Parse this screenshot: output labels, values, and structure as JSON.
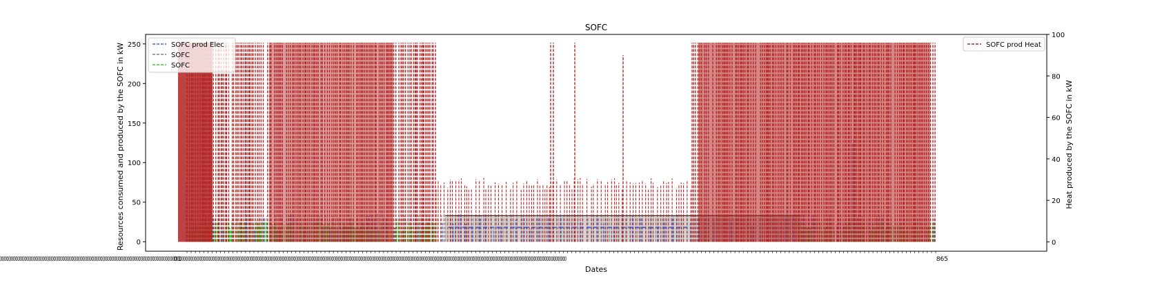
{
  "chart_data": {
    "type": "line",
    "title": "SOFC",
    "xlabel": "Dates",
    "ylabel_left": "Resources consumed and produced by the SOFC in kW",
    "ylabel_right": "Heat produced by the SOFC in kW",
    "ylim_left": [
      -12,
      262
    ],
    "ylim_right": [
      -4.5,
      100
    ],
    "yticks_left": [
      0,
      50,
      100,
      150,
      200,
      250
    ],
    "yticks_right": [
      0,
      20,
      40,
      60,
      80,
      100
    ],
    "x_tick_labels_note": "dense overlapping date ticks (illegible)",
    "x_tick_label_edges": [
      "01",
      "865"
    ],
    "grid": false,
    "legend_left": "top-left",
    "legend_right": "top-right",
    "series": [
      {
        "name": "SOFC prod Elec",
        "axis": "left",
        "color": "#4169e1",
        "style": "dashed",
        "typical_on": 15,
        "typical_range": [
          0,
          125
        ]
      },
      {
        "name": "SOFC",
        "axis": "left",
        "color": "#808080",
        "style": "dashed",
        "typical_on": 32,
        "plateau": 33,
        "typical_range": [
          0,
          240
        ]
      },
      {
        "name": "SOFC",
        "axis": "left",
        "color": "#32cd32",
        "style": "dashed",
        "typical_on": 20,
        "typical_range": [
          0,
          32
        ]
      },
      {
        "name": "SOFC prod Heat",
        "axis": "right",
        "color": "#b22222",
        "style": "dashed",
        "on_high": 96,
        "on_low": 28,
        "typical_range": [
          0,
          96
        ]
      }
    ],
    "regimes": [
      {
        "period": "start",
        "heat_high": 96,
        "elec_on": 15,
        "gas_on": 32
      },
      {
        "period": "middle",
        "heat_low": 28,
        "elec_on": 18,
        "gas_on": 32
      },
      {
        "period": "end",
        "heat_high": 96,
        "elec_on": 15,
        "gas_on": 32
      }
    ]
  }
}
